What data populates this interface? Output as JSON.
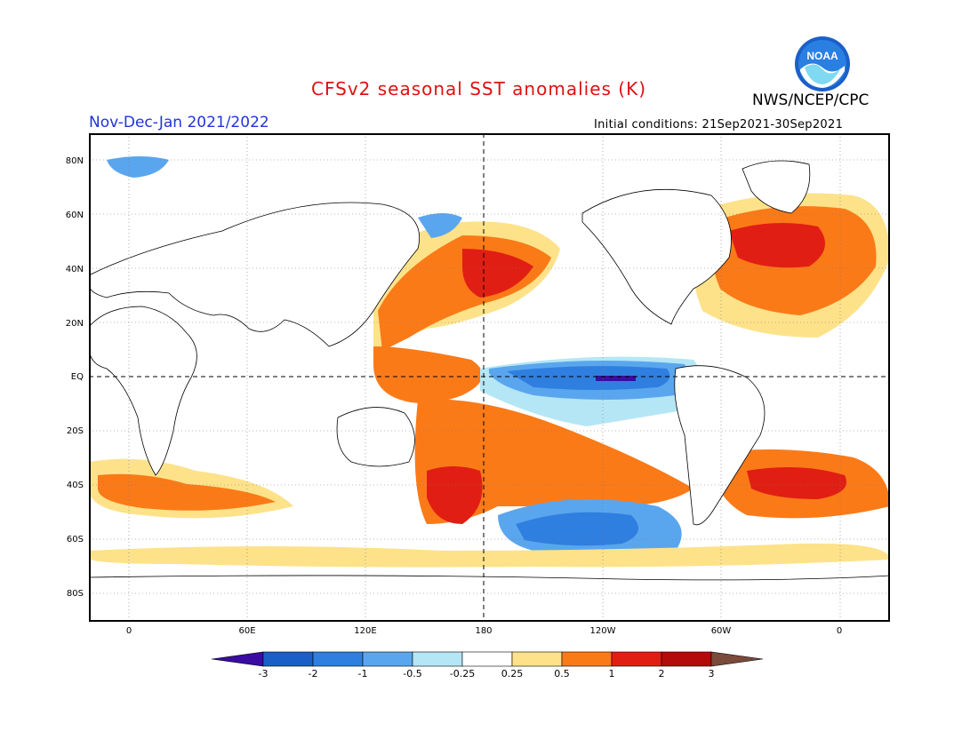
{
  "header": {
    "title": "CFSv2 seasonal SST anomalies (K)",
    "agency": "NWS/NCEP/CPC",
    "period": "Nov-Dec-Jan 2021/2022",
    "initial_conditions": "Initial conditions: 21Sep2021-30Sep2021",
    "logo_text": "NOAA"
  },
  "colors": {
    "title": "#e01010",
    "period": "#2233dd",
    "land": "#ffffff",
    "neutral": "#ffffff"
  },
  "map": {
    "lat_labels": [
      "80N",
      "60N",
      "40N",
      "20N",
      "EQ",
      "20S",
      "40S",
      "60S",
      "80S"
    ],
    "lon_labels": [
      "0",
      "60E",
      "120E",
      "180",
      "120W",
      "60W",
      "0"
    ]
  },
  "colorbar": {
    "labels": [
      "-3",
      "-2",
      "-1",
      "-0.5",
      "-0.25",
      "0.25",
      "0.5",
      "1",
      "2",
      "3"
    ],
    "colors": [
      "#3a0ca3",
      "#1a5fc8",
      "#2f7fe0",
      "#5aa6ee",
      "#b5e6f5",
      "#ffffff",
      "#fde28a",
      "#fb7a18",
      "#e11e14",
      "#b30a0a",
      "#7a4a3a"
    ]
  }
}
